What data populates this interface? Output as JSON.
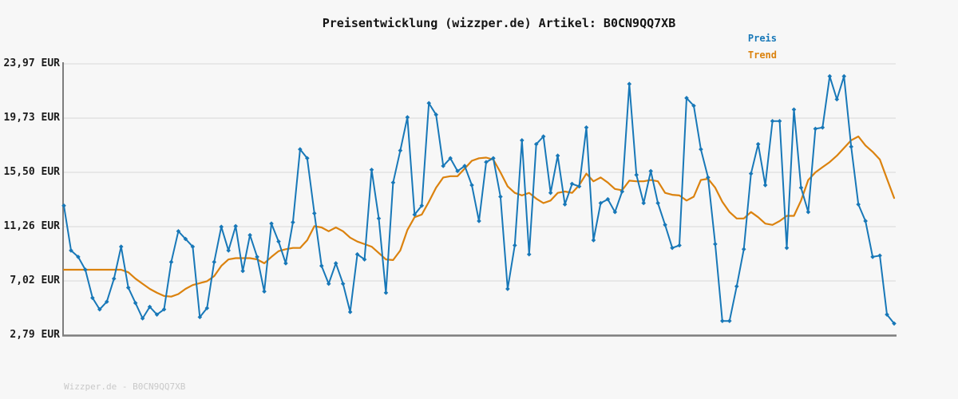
{
  "header": {
    "title": "Preisentwicklung (wizzper.de) Artikel: B0CN9QQ7XB"
  },
  "legend": {
    "items": [
      {
        "label": "Preis",
        "color": "#1878b8"
      },
      {
        "label": "Trend",
        "color": "#db820e"
      }
    ]
  },
  "footer": {
    "text": "Wizzper.de - B0CN9QQ7XB"
  },
  "chart_data": {
    "type": "line",
    "title": "Preisentwicklung (wizzper.de) Artikel: B0CN9QQ7XB",
    "xlabel": "",
    "ylabel": "",
    "x_axis": {
      "tick_labels_visible": false,
      "n_points": 117
    },
    "ylim": [
      2.79,
      23.97
    ],
    "grid": true,
    "legend_position": "top-right",
    "currency": "EUR",
    "y_ticks": [
      {
        "label": "23,97 EUR",
        "value": 23.97
      },
      {
        "label": "19,73 EUR",
        "value": 19.73
      },
      {
        "label": "15,50 EUR",
        "value": 15.5
      },
      {
        "label": "11,26 EUR",
        "value": 11.26
      },
      {
        "label": "7,02 EUR",
        "value": 7.02
      },
      {
        "label": "2,79 EUR",
        "value": 2.79
      }
    ],
    "series": [
      {
        "name": "Preis",
        "color": "#1878b8",
        "markers": "diamond",
        "line_width": 2,
        "values": [
          12.9,
          9.4,
          8.9,
          7.9,
          5.7,
          4.8,
          5.4,
          7.2,
          9.7,
          6.5,
          5.3,
          4.1,
          5.0,
          4.4,
          4.8,
          8.5,
          10.9,
          10.3,
          9.7,
          4.2,
          4.9,
          8.5,
          11.25,
          9.4,
          11.3,
          7.8,
          10.6,
          8.9,
          6.2,
          11.5,
          10.1,
          8.4,
          11.6,
          17.3,
          16.6,
          12.3,
          8.2,
          6.8,
          8.4,
          6.8,
          4.6,
          9.1,
          8.7,
          15.7,
          11.9,
          6.1,
          14.7,
          17.2,
          19.8,
          12.2,
          12.9,
          20.9,
          20.0,
          16.0,
          16.6,
          15.6,
          16.0,
          14.5,
          11.7,
          16.3,
          16.6,
          13.6,
          6.4,
          9.8,
          18.0,
          9.1,
          17.7,
          18.3,
          13.9,
          16.8,
          13.0,
          14.6,
          14.4,
          19.0,
          10.2,
          13.1,
          13.4,
          12.4,
          14.0,
          22.4,
          15.3,
          13.1,
          15.6,
          13.1,
          11.4,
          9.6,
          9.8,
          21.3,
          20.7,
          17.3,
          15.1,
          9.9,
          3.9,
          3.9,
          6.6,
          9.5,
          15.4,
          17.7,
          14.5,
          19.5,
          19.5,
          9.6,
          20.4,
          14.3,
          12.4,
          18.9,
          19.0,
          23.0,
          21.2,
          23.0,
          17.5,
          13.0,
          11.7,
          8.9,
          9.0,
          4.4,
          3.7
        ]
      },
      {
        "name": "Trend",
        "color": "#db820e",
        "markers": "none",
        "line_width": 2.2,
        "values": [
          7.9,
          7.9,
          7.9,
          7.9,
          7.9,
          7.9,
          7.9,
          7.9,
          7.9,
          7.7,
          7.2,
          6.8,
          6.4,
          6.1,
          5.85,
          5.8,
          6.0,
          6.4,
          6.7,
          6.85,
          7.0,
          7.4,
          8.2,
          8.7,
          8.8,
          8.8,
          8.8,
          8.7,
          8.4,
          8.9,
          9.35,
          9.5,
          9.6,
          9.6,
          10.2,
          11.3,
          11.2,
          10.9,
          11.2,
          10.9,
          10.4,
          10.1,
          9.9,
          9.7,
          9.2,
          8.7,
          8.65,
          9.4,
          11.0,
          12.0,
          12.2,
          13.2,
          14.3,
          15.1,
          15.2,
          15.2,
          15.8,
          16.4,
          16.6,
          16.65,
          16.5,
          15.5,
          14.4,
          13.9,
          13.7,
          13.9,
          13.45,
          13.1,
          13.3,
          13.9,
          14.0,
          13.9,
          14.5,
          15.4,
          14.8,
          15.1,
          14.7,
          14.2,
          14.1,
          14.85,
          14.8,
          14.8,
          14.9,
          14.8,
          13.9,
          13.75,
          13.7,
          13.3,
          13.6,
          14.9,
          15.0,
          14.3,
          13.2,
          12.4,
          11.9,
          11.9,
          12.4,
          12.0,
          11.5,
          11.4,
          11.7,
          12.1,
          12.1,
          13.3,
          14.9,
          15.5,
          15.9,
          16.3,
          16.8,
          17.4,
          18.0,
          18.3,
          17.6,
          17.1,
          16.5,
          15.0,
          13.5
        ]
      }
    ]
  }
}
